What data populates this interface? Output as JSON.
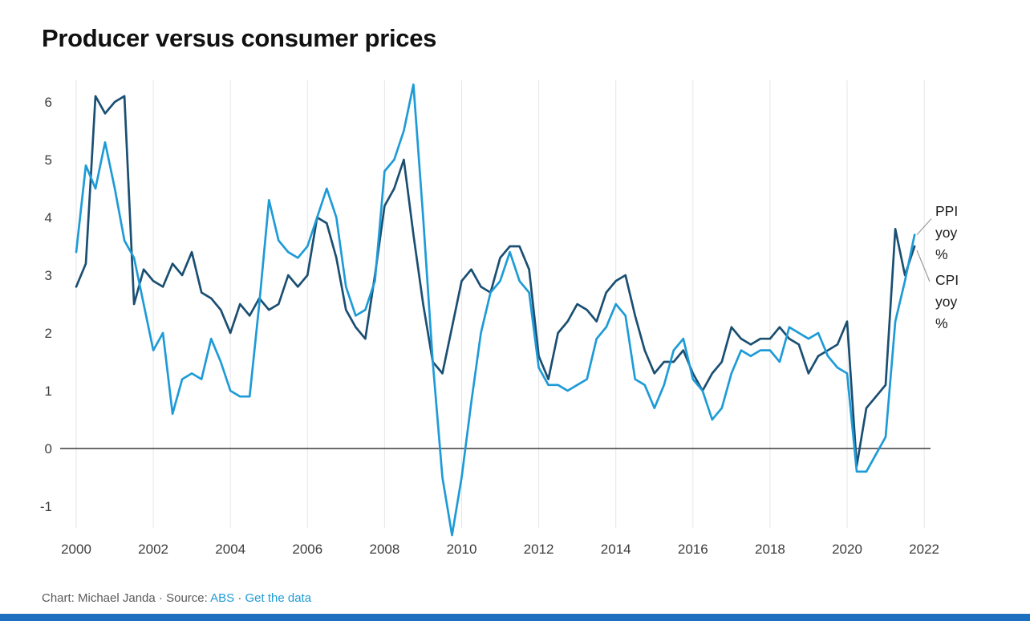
{
  "annotations": {
    "ppi": [
      "PPI",
      "yoy",
      "%"
    ],
    "cpi": [
      "CPI",
      "yoy",
      "%"
    ]
  },
  "footer": {
    "credit": "Chart: Michael Janda",
    "sep1": "·",
    "source_label": "Source:",
    "source_link": "ABS",
    "sep2": "·",
    "data_link": "Get the data"
  },
  "colors": {
    "cpi_line": "#1b4f72",
    "ppi_line": "#1e9bd7",
    "link": "#1e9bd7",
    "bottom_bar": "#1d6fc0",
    "zero_line": "#3a3a3a",
    "gridline": "#e6e6e6"
  },
  "chart_data": {
    "type": "line",
    "title": "Producer versus consumer prices",
    "xlabel": "",
    "ylabel": "",
    "xlim": [
      2000,
      2022.5
    ],
    "ylim": [
      -1.5,
      6.5
    ],
    "grid": "vertical-only",
    "legend_position": "right-annotations",
    "xticks": [
      2000,
      2002,
      2004,
      2006,
      2008,
      2010,
      2012,
      2014,
      2016,
      2018,
      2020,
      2022
    ],
    "yticks": [
      -1,
      0,
      1,
      2,
      3,
      4,
      5,
      6
    ],
    "x": [
      2000,
      2000.25,
      2000.5,
      2000.75,
      2001,
      2001.25,
      2001.5,
      2001.75,
      2002,
      2002.25,
      2002.5,
      2002.75,
      2003,
      2003.25,
      2003.5,
      2003.75,
      2004,
      2004.25,
      2004.5,
      2004.75,
      2005,
      2005.25,
      2005.5,
      2005.75,
      2006,
      2006.25,
      2006.5,
      2006.75,
      2007,
      2007.25,
      2007.5,
      2007.75,
      2008,
      2008.25,
      2008.5,
      2008.75,
      2009,
      2009.25,
      2009.5,
      2009.75,
      2010,
      2010.25,
      2010.5,
      2010.75,
      2011,
      2011.25,
      2011.5,
      2011.75,
      2012,
      2012.25,
      2012.5,
      2012.75,
      2013,
      2013.25,
      2013.5,
      2013.75,
      2014,
      2014.25,
      2014.5,
      2014.75,
      2015,
      2015.25,
      2015.5,
      2015.75,
      2016,
      2016.25,
      2016.5,
      2016.75,
      2017,
      2017.25,
      2017.5,
      2017.75,
      2018,
      2018.25,
      2018.5,
      2018.75,
      2019,
      2019.25,
      2019.5,
      2019.75,
      2020,
      2020.25,
      2020.5,
      2020.75,
      2021,
      2021.25,
      2021.5,
      2021.75
    ],
    "series": [
      {
        "id": "cpi",
        "name": "CPI yoy %",
        "color": "#1b4f72",
        "values": [
          2.8,
          3.2,
          6.1,
          5.8,
          6.0,
          6.1,
          2.5,
          3.1,
          2.9,
          2.8,
          3.2,
          3.0,
          3.4,
          2.7,
          2.6,
          2.4,
          2.0,
          2.5,
          2.3,
          2.6,
          2.4,
          2.5,
          3.0,
          2.8,
          3.0,
          4.0,
          3.9,
          3.3,
          2.4,
          2.1,
          1.9,
          3.0,
          4.2,
          4.5,
          5.0,
          3.7,
          2.5,
          1.5,
          1.3,
          2.1,
          2.9,
          3.1,
          2.8,
          2.7,
          3.3,
          3.5,
          3.5,
          3.1,
          1.6,
          1.2,
          2.0,
          2.2,
          2.5,
          2.4,
          2.2,
          2.7,
          2.9,
          3.0,
          2.3,
          1.7,
          1.3,
          1.5,
          1.5,
          1.7,
          1.3,
          1.0,
          1.3,
          1.5,
          2.1,
          1.9,
          1.8,
          1.9,
          1.9,
          2.1,
          1.9,
          1.8,
          1.3,
          1.6,
          1.7,
          1.8,
          2.2,
          -0.3,
          0.7,
          0.9,
          1.1,
          3.8,
          3.0,
          3.5
        ]
      },
      {
        "id": "ppi",
        "name": "PPI yoy %",
        "color": "#1e9bd7",
        "values": [
          3.4,
          4.9,
          4.5,
          5.3,
          4.5,
          3.6,
          3.3,
          2.5,
          1.7,
          2.0,
          0.6,
          1.2,
          1.3,
          1.2,
          1.9,
          1.5,
          1.0,
          0.9,
          0.9,
          2.5,
          4.3,
          3.6,
          3.4,
          3.3,
          3.5,
          4.0,
          4.5,
          4.0,
          2.8,
          2.3,
          2.4,
          2.9,
          4.8,
          5.0,
          5.5,
          6.3,
          4.0,
          1.5,
          -0.5,
          -1.5,
          -0.5,
          0.8,
          2.0,
          2.7,
          2.9,
          3.4,
          2.9,
          2.7,
          1.4,
          1.1,
          1.1,
          1.0,
          1.1,
          1.2,
          1.9,
          2.1,
          2.5,
          2.3,
          1.2,
          1.1,
          0.7,
          1.1,
          1.7,
          1.9,
          1.2,
          1.0,
          0.5,
          0.7,
          1.3,
          1.7,
          1.6,
          1.7,
          1.7,
          1.5,
          2.1,
          2.0,
          1.9,
          2.0,
          1.6,
          1.4,
          1.3,
          -0.4,
          -0.4,
          -0.1,
          0.2,
          2.2,
          2.9,
          3.7
        ]
      }
    ]
  }
}
